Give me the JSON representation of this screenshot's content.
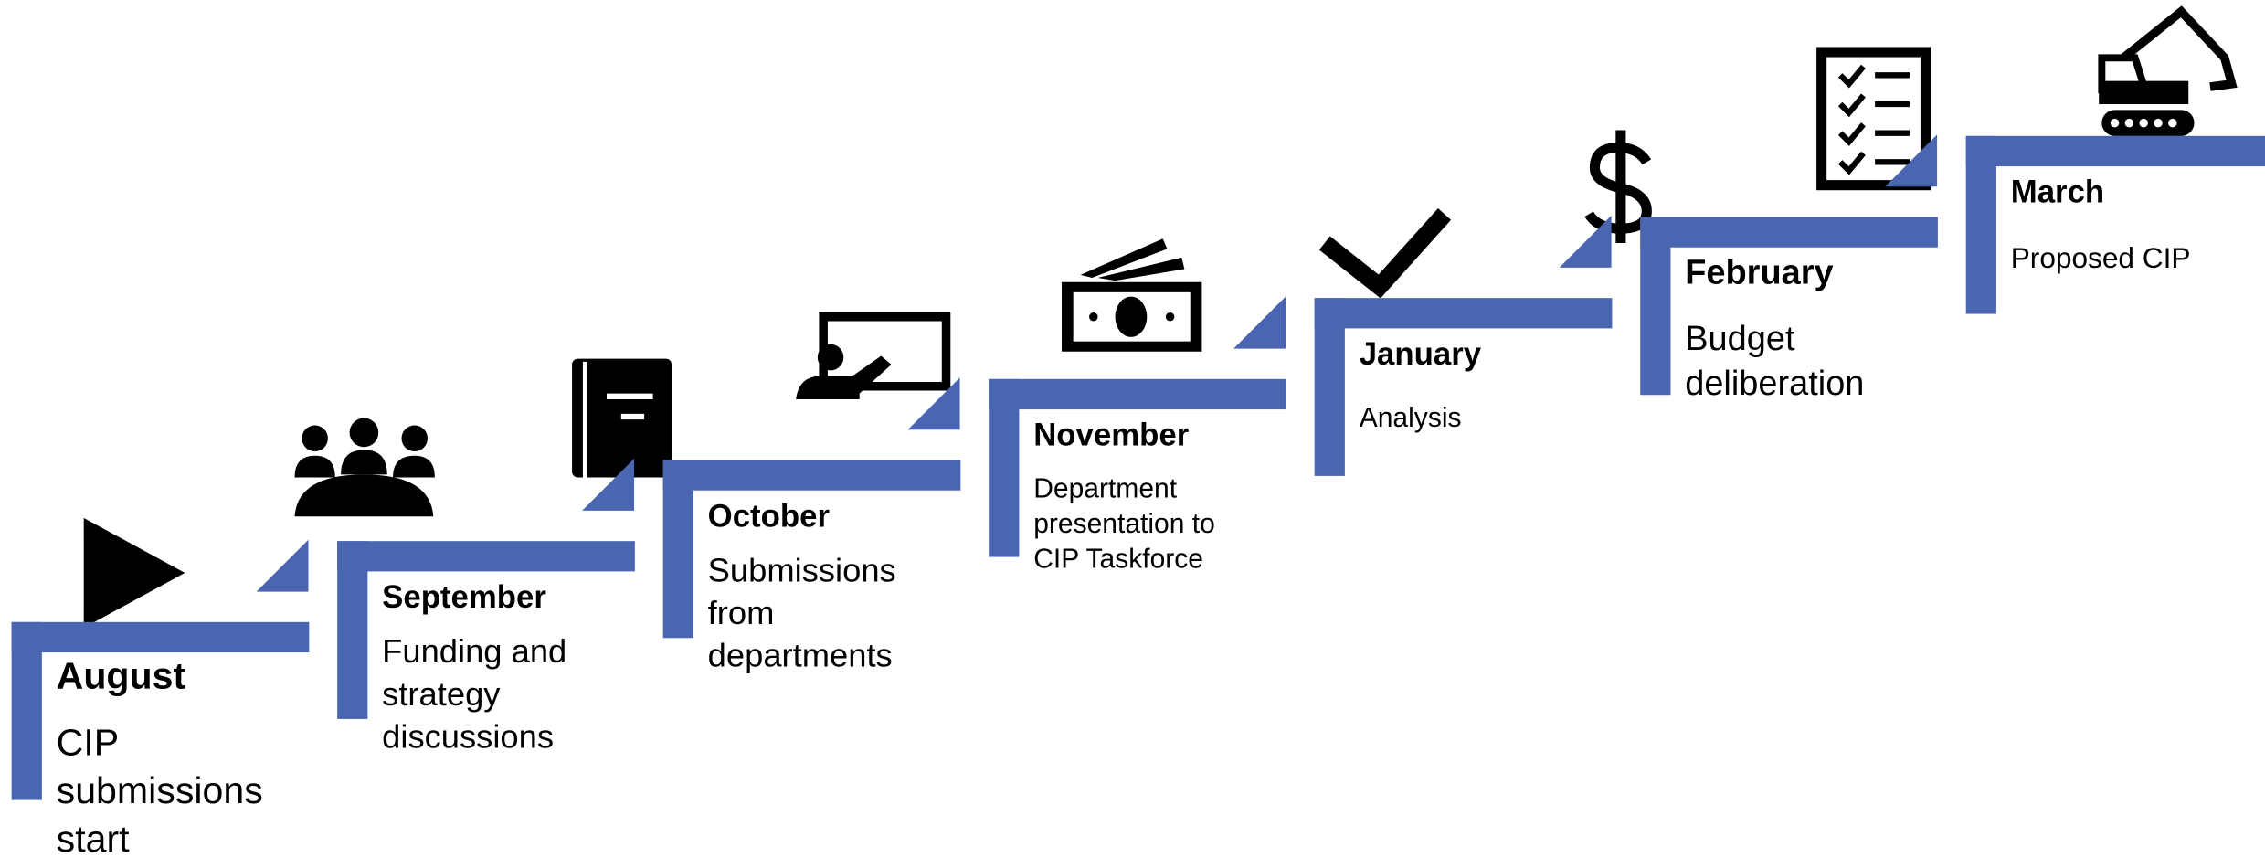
{
  "steps": [
    {
      "month": "August",
      "description_lines": [
        "CIP",
        "submissions",
        "start"
      ]
    },
    {
      "month": "September",
      "description_lines": [
        "Funding and",
        "strategy",
        "discussions"
      ]
    },
    {
      "month": "October",
      "description_lines": [
        "Submissions",
        "from",
        "departments"
      ]
    },
    {
      "month": "November",
      "description_lines": [
        "Department",
        "presentation to",
        "CIP Taskforce"
      ]
    },
    {
      "month": "January",
      "description_lines": [
        "Analysis"
      ]
    },
    {
      "month": "February",
      "description_lines": [
        "Budget",
        "deliberation"
      ]
    },
    {
      "month": "March",
      "description_lines": [
        "Proposed CIP"
      ]
    }
  ]
}
